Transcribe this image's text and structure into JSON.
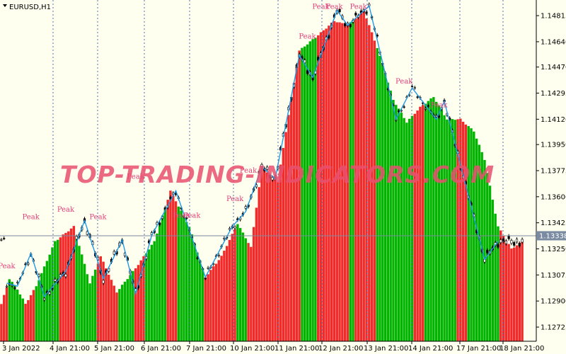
{
  "symbol_label": "EURUSD,H1",
  "watermark": "TOP-TRADING-INDICATORS.COM",
  "peak_label": "Peak",
  "current_price_label": "1.13338",
  "colors": {
    "background": "#fffff0",
    "bull": "#00b400",
    "bear": "#f22a2a",
    "zigzag": "#1e9be6",
    "candle": "#000000",
    "grid": "#5070b0",
    "peak": "#e0407a"
  },
  "chart_data": {
    "type": "bar",
    "title": "",
    "ylim": [
      1.1263,
      1.1492
    ],
    "y_ticks": [
      1.14815,
      1.1464,
      1.1447,
      1.14295,
      1.1412,
      1.1395,
      1.13775,
      1.136,
      1.13425,
      1.1325,
      1.13075,
      1.129,
      1.12725
    ],
    "x_ticks": [
      "3 Jan 2022",
      "4 Jan 21:00",
      "5 Jan 21:00",
      "6 Jan 21:00",
      "7 Jan 21:00",
      "10 Jan 21:00",
      "11 Jan 21:00",
      "12 Jan 21:00",
      "13 Jan 21:00",
      "14 Jan 21:00",
      "17 Jan 21:00",
      "18 Jan 21:00"
    ],
    "current_price": 1.13338,
    "histogram_anchors": [
      {
        "i": 0,
        "v": 1.1288
      },
      {
        "i": 3,
        "v": 1.1305
      },
      {
        "i": 6,
        "v": 1.1298
      },
      {
        "i": 9,
        "v": 1.1288
      },
      {
        "i": 13,
        "v": 1.13
      },
      {
        "i": 20,
        "v": 1.133
      },
      {
        "i": 27,
        "v": 1.134
      },
      {
        "i": 33,
        "v": 1.1302
      },
      {
        "i": 37,
        "v": 1.132
      },
      {
        "i": 43,
        "v": 1.1296
      },
      {
        "i": 50,
        "v": 1.1312
      },
      {
        "i": 57,
        "v": 1.133
      },
      {
        "i": 63,
        "v": 1.1364
      },
      {
        "i": 70,
        "v": 1.134
      },
      {
        "i": 76,
        "v": 1.1306
      },
      {
        "i": 82,
        "v": 1.132
      },
      {
        "i": 88,
        "v": 1.1342
      },
      {
        "i": 93,
        "v": 1.1326
      },
      {
        "i": 97,
        "v": 1.138
      },
      {
        "i": 103,
        "v": 1.137
      },
      {
        "i": 107,
        "v": 1.1415
      },
      {
        "i": 111,
        "v": 1.1458
      },
      {
        "i": 115,
        "v": 1.1464
      },
      {
        "i": 119,
        "v": 1.147
      },
      {
        "i": 124,
        "v": 1.1478
      },
      {
        "i": 129,
        "v": 1.1475
      },
      {
        "i": 135,
        "v": 1.1485
      },
      {
        "i": 140,
        "v": 1.146
      },
      {
        "i": 146,
        "v": 1.1425
      },
      {
        "i": 151,
        "v": 1.141
      },
      {
        "i": 156,
        "v": 1.142
      },
      {
        "i": 161,
        "v": 1.1427
      },
      {
        "i": 166,
        "v": 1.1412
      },
      {
        "i": 171,
        "v": 1.1412
      },
      {
        "i": 176,
        "v": 1.1404
      },
      {
        "i": 180,
        "v": 1.1385
      },
      {
        "i": 185,
        "v": 1.134
      },
      {
        "i": 190,
        "v": 1.1325
      },
      {
        "i": 194,
        "v": 1.133
      }
    ],
    "histogram_colors": [
      {
        "from": 0,
        "to": 3,
        "color": "bear"
      },
      {
        "from": 3,
        "to": 9,
        "color": "bull"
      },
      {
        "from": 9,
        "to": 13,
        "color": "bear"
      },
      {
        "from": 13,
        "to": 22,
        "color": "bull"
      },
      {
        "from": 22,
        "to": 28,
        "color": "bear"
      },
      {
        "from": 28,
        "to": 36,
        "color": "bull"
      },
      {
        "from": 36,
        "to": 44,
        "color": "bear"
      },
      {
        "from": 44,
        "to": 50,
        "color": "bull"
      },
      {
        "from": 50,
        "to": 54,
        "color": "bear"
      },
      {
        "from": 54,
        "to": 62,
        "color": "bull"
      },
      {
        "from": 62,
        "to": 66,
        "color": "bear"
      },
      {
        "from": 66,
        "to": 76,
        "color": "bull"
      },
      {
        "from": 76,
        "to": 88,
        "color": "bear"
      },
      {
        "from": 88,
        "to": 92,
        "color": "bull"
      },
      {
        "from": 92,
        "to": 112,
        "color": "bear"
      },
      {
        "from": 112,
        "to": 118,
        "color": "bull"
      },
      {
        "from": 118,
        "to": 130,
        "color": "bear"
      },
      {
        "from": 130,
        "to": 132,
        "color": "bull"
      },
      {
        "from": 132,
        "to": 140,
        "color": "bear"
      },
      {
        "from": 140,
        "to": 154,
        "color": "bull"
      },
      {
        "from": 154,
        "to": 158,
        "color": "bear"
      },
      {
        "from": 158,
        "to": 170,
        "color": "bull"
      },
      {
        "from": 170,
        "to": 174,
        "color": "bear"
      },
      {
        "from": 174,
        "to": 186,
        "color": "bull"
      },
      {
        "from": 186,
        "to": 195,
        "color": "bear"
      }
    ],
    "zigzag": [
      {
        "i": 2,
        "v": 1.1302
      },
      {
        "i": 6,
        "v": 1.13
      },
      {
        "i": 11,
        "v": 1.1322
      },
      {
        "i": 16,
        "v": 1.1293
      },
      {
        "i": 24,
        "v": 1.131
      },
      {
        "i": 31,
        "v": 1.1344
      },
      {
        "i": 38,
        "v": 1.1305
      },
      {
        "i": 45,
        "v": 1.1331
      },
      {
        "i": 50,
        "v": 1.1295
      },
      {
        "i": 56,
        "v": 1.1334
      },
      {
        "i": 65,
        "v": 1.1364
      },
      {
        "i": 76,
        "v": 1.1306
      },
      {
        "i": 86,
        "v": 1.134
      },
      {
        "i": 91,
        "v": 1.135
      },
      {
        "i": 97,
        "v": 1.138
      },
      {
        "i": 102,
        "v": 1.1372
      },
      {
        "i": 111,
        "v": 1.1455
      },
      {
        "i": 116,
        "v": 1.144
      },
      {
        "i": 125,
        "v": 1.1485
      },
      {
        "i": 129,
        "v": 1.1475
      },
      {
        "i": 137,
        "v": 1.1488
      },
      {
        "i": 147,
        "v": 1.1412
      },
      {
        "i": 153,
        "v": 1.1433
      },
      {
        "i": 162,
        "v": 1.1412
      },
      {
        "i": 165,
        "v": 1.1424
      },
      {
        "i": 180,
        "v": 1.1318
      },
      {
        "i": 185,
        "v": 1.133
      }
    ],
    "peaks": [
      {
        "i": 2,
        "v": 1.1312
      },
      {
        "i": 11,
        "v": 1.1345
      },
      {
        "i": 24,
        "v": 1.135
      },
      {
        "i": 36,
        "v": 1.1345
      },
      {
        "i": 50,
        "v": 1.1372
      },
      {
        "i": 67,
        "v": 1.1346
      },
      {
        "i": 71,
        "v": 1.1346
      },
      {
        "i": 87,
        "v": 1.1357
      },
      {
        "i": 92,
        "v": 1.1376
      },
      {
        "i": 114,
        "v": 1.1466
      },
      {
        "i": 119,
        "v": 1.1486
      },
      {
        "i": 124,
        "v": 1.1486
      },
      {
        "i": 133,
        "v": 1.1486
      },
      {
        "i": 150,
        "v": 1.1436
      },
      {
        "i": 163,
        "v": 1.142
      }
    ]
  }
}
